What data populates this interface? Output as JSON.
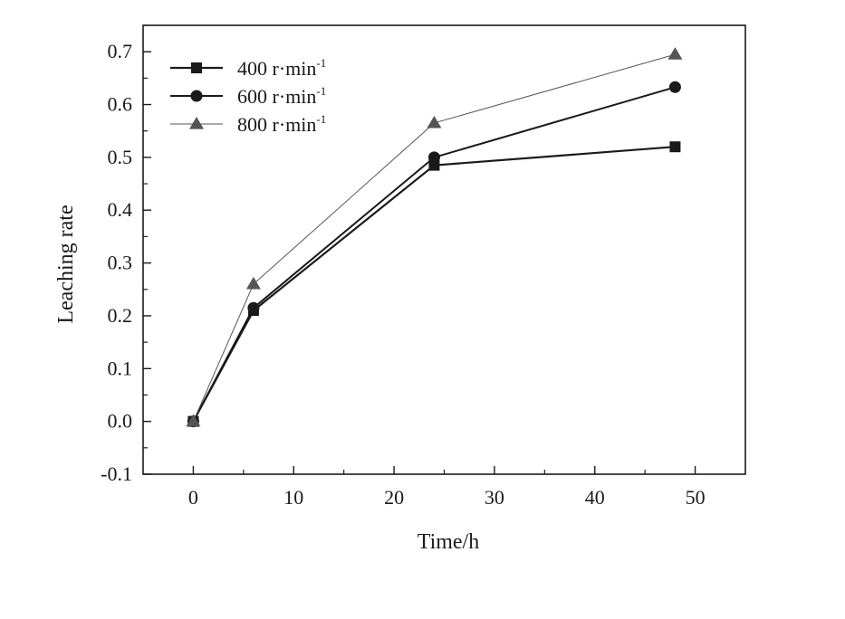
{
  "chart_data": {
    "type": "line",
    "title": "",
    "xlabel": "Time/h",
    "ylabel": "Leaching rate",
    "xlim": [
      -5,
      55
    ],
    "ylim": [
      -0.1,
      0.75
    ],
    "xticks": [
      "0",
      "10",
      "20",
      "30",
      "40",
      "50"
    ],
    "yticks": [
      "-0.1",
      "0.0",
      "0.1",
      "0.2",
      "0.3",
      "0.4",
      "0.5",
      "0.6",
      "0.7"
    ],
    "grid": false,
    "legend_position": "top-left",
    "x": [
      0,
      6,
      24,
      48
    ],
    "series": [
      {
        "name": "400 r·min",
        "superscript": "-1",
        "marker": "square",
        "values": [
          0.0,
          0.21,
          0.485,
          0.52
        ],
        "color": "#1a1a1a"
      },
      {
        "name": "600 r·min",
        "superscript": "-1",
        "marker": "circle",
        "values": [
          0.0,
          0.215,
          0.5,
          0.633
        ],
        "color": "#1a1a1a"
      },
      {
        "name": "800 r·min",
        "superscript": "-1",
        "marker": "triangle",
        "values": [
          0.0,
          0.26,
          0.565,
          0.695
        ],
        "color": "#555555"
      }
    ]
  }
}
